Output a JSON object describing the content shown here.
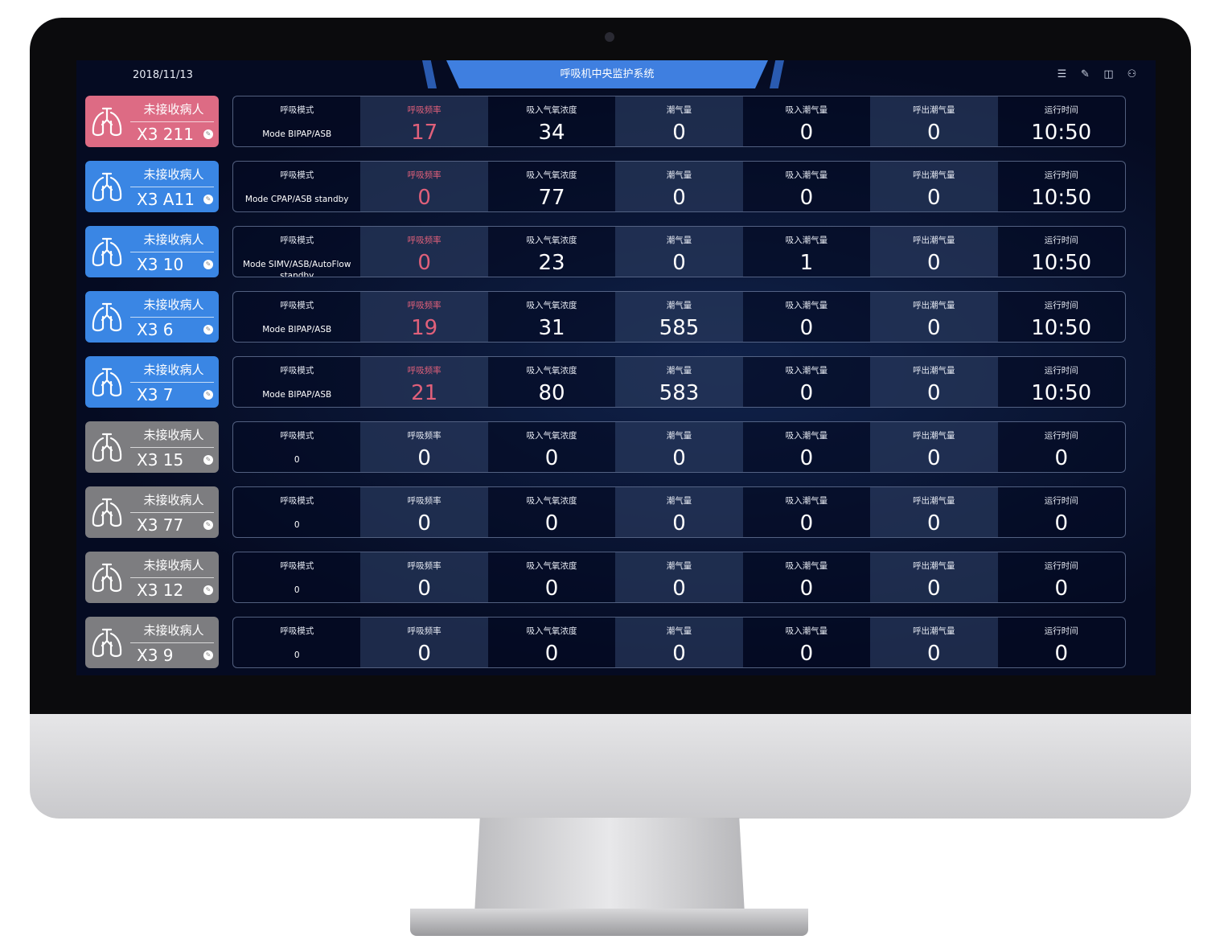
{
  "header": {
    "date": "2018/11/13",
    "title": "呼吸机中央监护系统",
    "icons": [
      "menu-list-icon",
      "edit-icon",
      "layout-icon",
      "user-icon"
    ]
  },
  "labels": [
    "呼吸模式",
    "呼吸频率",
    "吸入气氧浓度",
    "潮气量",
    "吸入潮气量",
    "呼出潮气量",
    "运行时间"
  ],
  "colors": {
    "pink": "#dd6b84",
    "blue": "#3a86e4",
    "gray": "#7d7d80",
    "alert_text": "#e0607a"
  },
  "rows": [
    {
      "status": "pink",
      "name": "未接收病人",
      "id": "X3 211",
      "mode": "Mode BIPAP/ASB",
      "values": [
        "17",
        "34",
        "0",
        "0",
        "0",
        "10:50"
      ],
      "alert": true
    },
    {
      "status": "blue",
      "name": "未接收病人",
      "id": "X3 A11",
      "mode": "Mode CPAP/ASB standby",
      "values": [
        "0",
        "77",
        "0",
        "0",
        "0",
        "10:50"
      ],
      "alert": true
    },
    {
      "status": "blue",
      "name": "未接收病人",
      "id": "X3 10",
      "mode": "Mode SIMV/ASB/AutoFlow standby",
      "values": [
        "0",
        "23",
        "0",
        "1",
        "0",
        "10:50"
      ],
      "alert": true
    },
    {
      "status": "blue",
      "name": "未接收病人",
      "id": "X3 6",
      "mode": "Mode BIPAP/ASB",
      "values": [
        "19",
        "31",
        "585",
        "0",
        "0",
        "10:50"
      ],
      "alert": true
    },
    {
      "status": "blue",
      "name": "未接收病人",
      "id": "X3 7",
      "mode": "Mode BIPAP/ASB",
      "values": [
        "21",
        "80",
        "583",
        "0",
        "0",
        "10:50"
      ],
      "alert": true
    },
    {
      "status": "gray",
      "name": "未接收病人",
      "id": "X3 15",
      "mode": "0",
      "values": [
        "0",
        "0",
        "0",
        "0",
        "0",
        "0"
      ],
      "alert": false
    },
    {
      "status": "gray",
      "name": "未接收病人",
      "id": "X3 77",
      "mode": "0",
      "values": [
        "0",
        "0",
        "0",
        "0",
        "0",
        "0"
      ],
      "alert": false
    },
    {
      "status": "gray",
      "name": "未接收病人",
      "id": "X3 12",
      "mode": "0",
      "values": [
        "0",
        "0",
        "0",
        "0",
        "0",
        "0"
      ],
      "alert": false
    },
    {
      "status": "gray",
      "name": "未接收病人",
      "id": "X3 9",
      "mode": "0",
      "values": [
        "0",
        "0",
        "0",
        "0",
        "0",
        "0"
      ],
      "alert": false
    }
  ]
}
